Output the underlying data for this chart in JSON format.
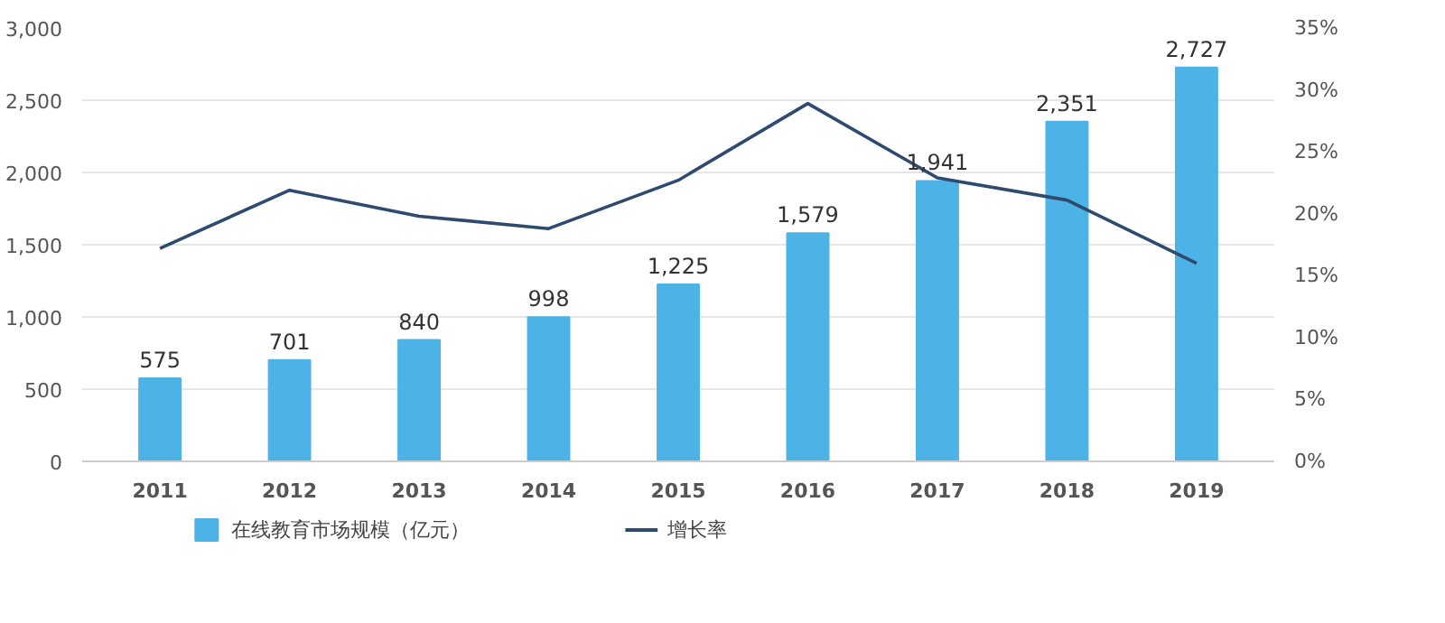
{
  "chart_data": {
    "type": "bar",
    "categories": [
      "2011",
      "2012",
      "2013",
      "2014",
      "2015",
      "2016",
      "2017",
      "2018",
      "2019"
    ],
    "series": [
      {
        "name": "在线教育市场规模（亿元）",
        "color": "#4db3e6",
        "values": [
          575,
          701,
          840,
          998,
          1225,
          1579,
          1941,
          2351,
          2727
        ],
        "value_labels": [
          "575",
          "701",
          "840",
          "998",
          "1,225",
          "1,579",
          "1,941",
          "2,351",
          "2,727"
        ]
      },
      {
        "name": "增长率",
        "type": "line",
        "axis": "y2",
        "color": "#2e4a6e",
        "values": [
          17.2,
          21.9,
          19.8,
          18.8,
          22.7,
          28.9,
          22.9,
          21.1,
          16.0
        ]
      }
    ],
    "ylim": [
      0,
      3000
    ],
    "yticks": [
      0,
      {
        "value": 500,
        "label": "500"
      },
      {
        "value": 1000,
        "label": "1,000"
      },
      {
        "value": 1500,
        "label": "1,500"
      },
      {
        "value": 2000,
        "label": "2,000"
      },
      {
        "value": 2500,
        "label": "2,500"
      },
      {
        "value": 3000,
        "label": "3,000"
      }
    ],
    "y2lim": [
      0,
      35
    ],
    "y2ticks": [
      {
        "value": 0,
        "label": "0%"
      },
      {
        "value": 5,
        "label": "5%"
      },
      {
        "value": 10,
        "label": "10%"
      },
      {
        "value": 15,
        "label": "15%"
      },
      {
        "value": 20,
        "label": "20%"
      },
      {
        "value": 25,
        "label": "25%"
      },
      {
        "value": 30,
        "label": "30%"
      },
      {
        "value": 35,
        "label": "35%"
      }
    ],
    "grid": "y",
    "legend": "bottom",
    "marker": "none",
    "line_style": "solid"
  }
}
